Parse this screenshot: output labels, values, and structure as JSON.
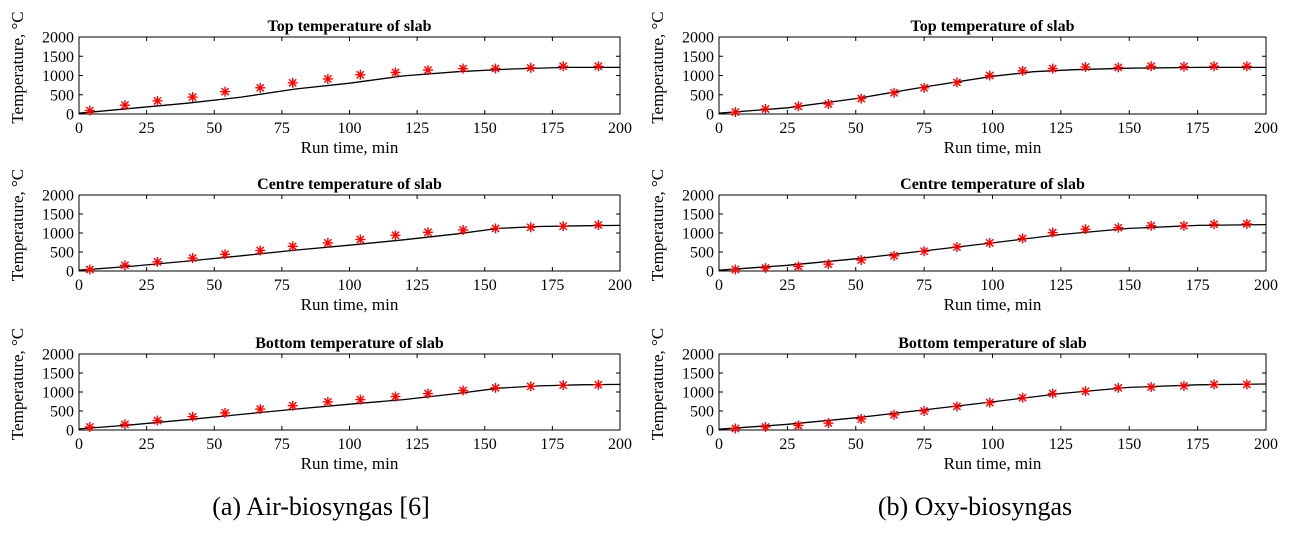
{
  "figure": {
    "captions": [
      "(a) Air-biosyngas [6]",
      "(b) Oxy-biosyngas"
    ]
  },
  "chart_data": [
    {
      "type": "line",
      "title": "Top temperature of slab",
      "xlabel": "Run time, min",
      "ylabel": "Temperature, °C",
      "xlim": [
        0,
        200
      ],
      "ylim": [
        0,
        2000
      ],
      "xticks": [
        0,
        25,
        50,
        75,
        100,
        125,
        150,
        175,
        200
      ],
      "yticks": [
        0,
        500,
        1000,
        1500,
        2000
      ],
      "series": [
        {
          "kind": "line",
          "color": "#000000",
          "x": [
            0,
            20,
            40,
            60,
            80,
            100,
            120,
            140,
            160,
            180,
            200
          ],
          "y": [
            20,
            150,
            280,
            440,
            650,
            800,
            990,
            1100,
            1170,
            1210,
            1210
          ]
        },
        {
          "kind": "marker",
          "color": "#ff0000",
          "x": [
            4,
            17,
            29,
            42,
            54,
            67,
            79,
            92,
            104,
            117,
            129,
            142,
            154,
            167,
            179,
            192
          ],
          "y": [
            90,
            230,
            340,
            440,
            580,
            680,
            810,
            910,
            1020,
            1080,
            1140,
            1180,
            1180,
            1200,
            1240,
            1240
          ]
        }
      ]
    },
    {
      "type": "line",
      "title": "Centre temperature of slab",
      "xlabel": "Run time, min",
      "ylabel": "Temperature, °C",
      "xlim": [
        0,
        200
      ],
      "ylim": [
        0,
        2000
      ],
      "xticks": [
        0,
        25,
        50,
        75,
        100,
        125,
        150,
        175,
        200
      ],
      "yticks": [
        0,
        500,
        1000,
        1500,
        2000
      ],
      "series": [
        {
          "kind": "line",
          "color": "#000000",
          "x": [
            0,
            20,
            40,
            60,
            80,
            100,
            120,
            140,
            155,
            170,
            185,
            200
          ],
          "y": [
            20,
            130,
            260,
            400,
            550,
            680,
            820,
            980,
            1120,
            1170,
            1190,
            1200
          ]
        },
        {
          "kind": "marker",
          "color": "#ff0000",
          "x": [
            4,
            17,
            29,
            42,
            54,
            67,
            79,
            92,
            104,
            117,
            129,
            142,
            154,
            167,
            179,
            192
          ],
          "y": [
            40,
            150,
            240,
            340,
            440,
            540,
            650,
            740,
            830,
            940,
            1020,
            1080,
            1120,
            1150,
            1180,
            1210
          ]
        }
      ]
    },
    {
      "type": "line",
      "title": "Bottom temperature of slab",
      "xlabel": "Run time, min",
      "ylabel": "Temperature, °C",
      "xlim": [
        0,
        200
      ],
      "ylim": [
        0,
        2000
      ],
      "xticks": [
        0,
        25,
        50,
        75,
        100,
        125,
        150,
        175,
        200
      ],
      "yticks": [
        0,
        500,
        1000,
        1500,
        2000
      ],
      "series": [
        {
          "kind": "line",
          "color": "#000000",
          "x": [
            0,
            20,
            40,
            60,
            80,
            100,
            120,
            140,
            155,
            170,
            185,
            200
          ],
          "y": [
            30,
            140,
            270,
            410,
            550,
            680,
            800,
            960,
            1100,
            1160,
            1190,
            1200
          ]
        },
        {
          "kind": "marker",
          "color": "#ff0000",
          "x": [
            4,
            17,
            29,
            42,
            54,
            67,
            79,
            92,
            104,
            117,
            129,
            142,
            154,
            167,
            179,
            192
          ],
          "y": [
            80,
            150,
            250,
            350,
            450,
            550,
            640,
            740,
            800,
            880,
            960,
            1040,
            1110,
            1150,
            1180,
            1190
          ]
        }
      ]
    },
    {
      "type": "line",
      "title": "Top temperature of slab",
      "xlabel": "Run time, min",
      "ylabel": "Temperature, °C",
      "xlim": [
        0,
        200
      ],
      "ylim": [
        0,
        2000
      ],
      "xticks": [
        0,
        25,
        50,
        75,
        100,
        125,
        150,
        175,
        200
      ],
      "yticks": [
        0,
        500,
        1000,
        1500,
        2000
      ],
      "series": [
        {
          "kind": "line",
          "color": "#000000",
          "x": [
            0,
            25,
            50,
            75,
            100,
            115,
            130,
            150,
            175,
            200
          ],
          "y": [
            20,
            160,
            400,
            700,
            980,
            1100,
            1150,
            1190,
            1210,
            1210
          ]
        },
        {
          "kind": "marker",
          "color": "#ff0000",
          "x": [
            6,
            17,
            29,
            40,
            52,
            64,
            75,
            87,
            99,
            111,
            122,
            134,
            146,
            158,
            170,
            181,
            193
          ],
          "y": [
            50,
            130,
            200,
            260,
            400,
            550,
            680,
            820,
            1000,
            1120,
            1180,
            1220,
            1210,
            1240,
            1230,
            1240,
            1240
          ]
        }
      ]
    },
    {
      "type": "line",
      "title": "Centre temperature of slab",
      "xlabel": "Run time, min",
      "ylabel": "Temperature, °C",
      "xlim": [
        0,
        200
      ],
      "ylim": [
        0,
        2000
      ],
      "xticks": [
        0,
        25,
        50,
        75,
        100,
        125,
        150,
        175,
        200
      ],
      "yticks": [
        0,
        500,
        1000,
        1500,
        2000
      ],
      "series": [
        {
          "kind": "line",
          "color": "#000000",
          "x": [
            0,
            25,
            50,
            75,
            100,
            125,
            150,
            175,
            200
          ],
          "y": [
            20,
            150,
            320,
            530,
            740,
            960,
            1120,
            1200,
            1220
          ]
        },
        {
          "kind": "marker",
          "color": "#ff0000",
          "x": [
            6,
            17,
            29,
            40,
            52,
            64,
            75,
            87,
            99,
            111,
            122,
            134,
            146,
            158,
            170,
            181,
            193
          ],
          "y": [
            40,
            80,
            120,
            180,
            290,
            400,
            520,
            630,
            740,
            860,
            1010,
            1100,
            1140,
            1190,
            1190,
            1230,
            1240
          ]
        }
      ]
    },
    {
      "type": "line",
      "title": "Bottom temperature of slab",
      "xlabel": "Run time, min",
      "ylabel": "Temperature, °C",
      "xlim": [
        0,
        200
      ],
      "ylim": [
        0,
        2000
      ],
      "xticks": [
        0,
        25,
        50,
        75,
        100,
        125,
        150,
        175,
        200
      ],
      "yticks": [
        0,
        500,
        1000,
        1500,
        2000
      ],
      "series": [
        {
          "kind": "line",
          "color": "#000000",
          "x": [
            0,
            25,
            50,
            75,
            100,
            125,
            150,
            175,
            200
          ],
          "y": [
            20,
            150,
            320,
            530,
            740,
            960,
            1120,
            1190,
            1210
          ]
        },
        {
          "kind": "marker",
          "color": "#ff0000",
          "x": [
            6,
            17,
            29,
            40,
            52,
            64,
            75,
            87,
            99,
            111,
            122,
            134,
            146,
            158,
            170,
            181,
            193
          ],
          "y": [
            40,
            80,
            120,
            180,
            290,
            400,
            500,
            620,
            720,
            850,
            960,
            1020,
            1110,
            1130,
            1160,
            1200,
            1200
          ]
        }
      ]
    }
  ]
}
